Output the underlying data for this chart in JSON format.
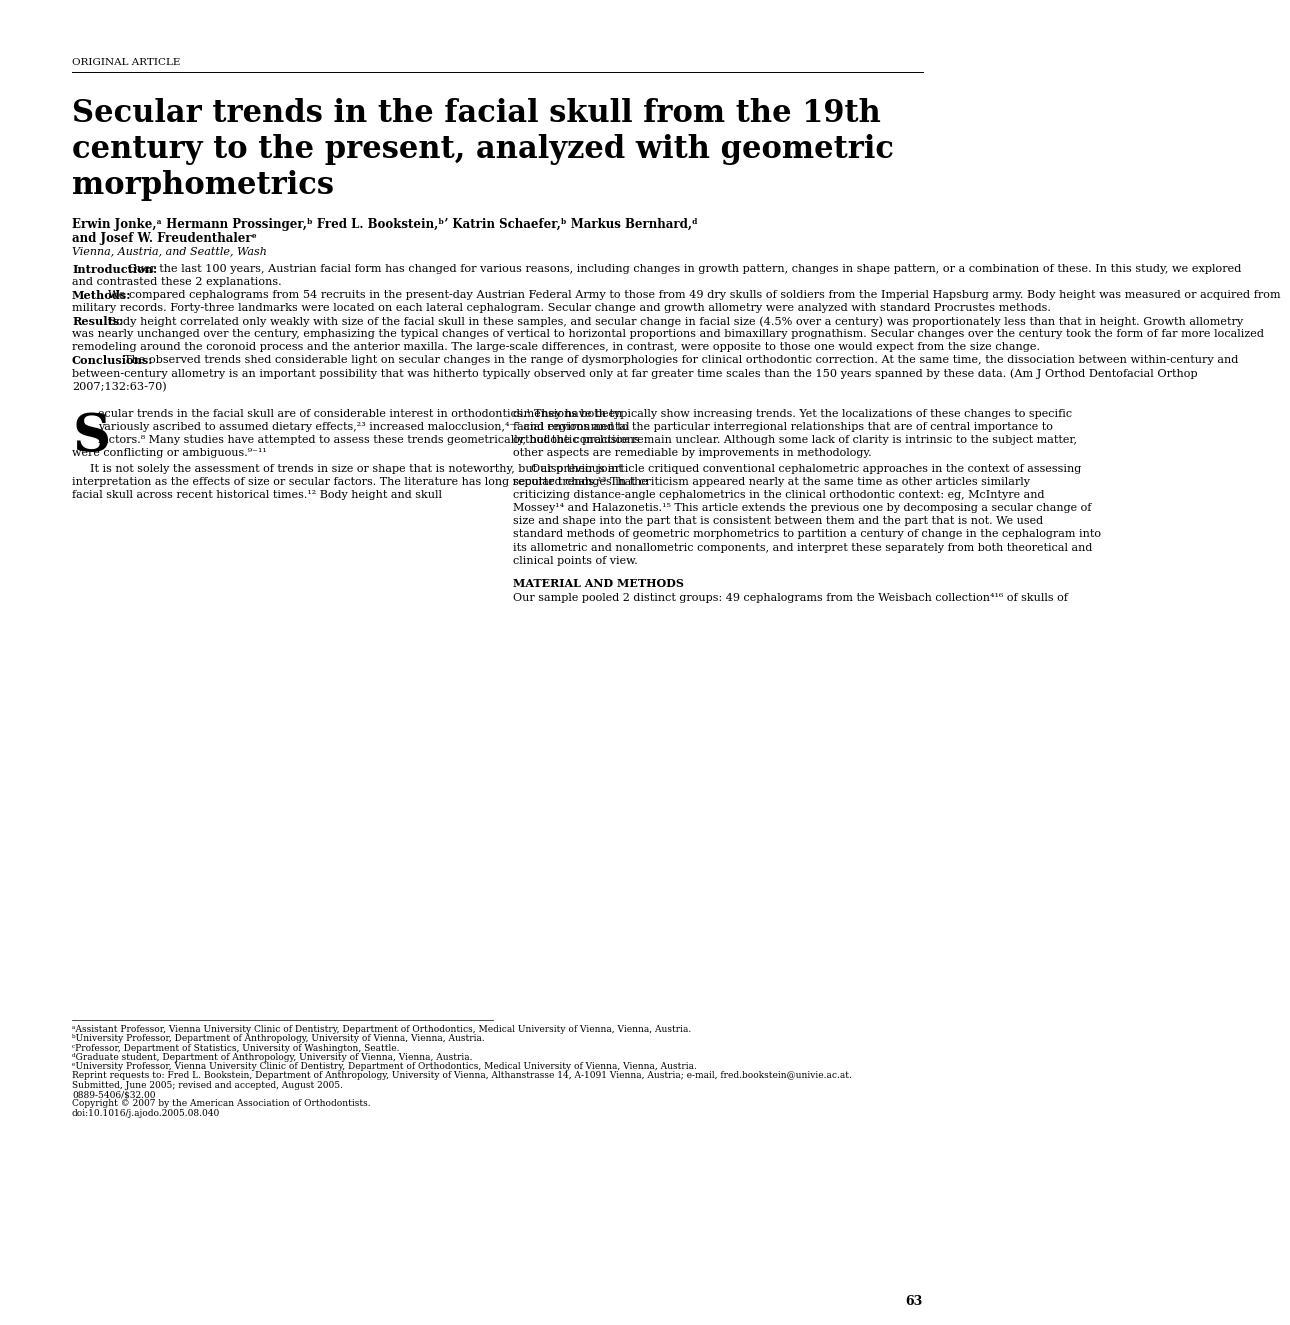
{
  "background_color": "#ffffff",
  "header_label": "ORIGINAL ARTICLE",
  "title_line1": "Secular trends in the facial skull from the 19th",
  "title_line2": "century to the present, analyzed with geometric",
  "title_line3": "morphometrics",
  "authors_line1": "Erwin Jonke,ᵃ Hermann Prossinger,ᵇ Fred L. Bookstein,ᵇʼ Katrin Schaefer,ᵇ Markus Bernhard,ᵈ",
  "authors_line2": "and Josef W. Freudenthalerᵉ",
  "affiliation": "Vienna, Austria, and Seattle, Wash",
  "abstract_intro_label": "Introduction:",
  "abstract_intro": "Over the last 100 years, Austrian facial form has changed for various reasons, including changes in growth pattern, changes in shape pattern, or a combination of these. In this study, we explored and contrasted these 2 explanations.",
  "abstract_methods_label": "Methods:",
  "abstract_methods": "We compared cephalograms from 54 recruits in the present-day Austrian Federal Army to those from 49 dry skulls of soldiers from the Imperial Hapsburg army. Body height was measured or acquired from military records. Forty-three landmarks were located on each lateral cephalogram. Secular change and growth allometry were analyzed with standard Procrustes methods.",
  "abstract_results_label": "Results:",
  "abstract_results": "Body height correlated only weakly with size of the facial skull in these samples, and secular change in facial size (4.5% over a century) was proportionately less than that in height. Growth allometry was nearly unchanged over the century, emphasizing the typical changes of vertical to horizontal proportions and bimaxillary prognathism. Secular changes over the century took the form of far more localized remodeling around the coronoid process and the anterior maxilla. The large-scale differences, in contrast, were opposite to those one would expect from the size change.",
  "abstract_conclusions_label": "Conclusions:",
  "abstract_conclusions": "The observed trends shed considerable light on secular changes in the range of dysmorphologies for clinical orthodontic correction. At the same time, the dissociation between within-century and between-century allometry is an important possibility that was hitherto typically observed only at far greater time scales than the 150 years spanned by these data. (Am J Orthod Dentofacial Orthop 2007;132:63-70)",
  "body_col1_para1": "ecular trends in the facial skull are of considerable interest in orthodontics.¹ They have been variously ascribed to assumed dietary effects,²³ increased malocclusion,⁴⁻⁷ and environmental factors.⁸ Many studies have attempted to assess these trends geometrically, but the conclusions were conflicting or ambiguous.⁹⁻¹¹",
  "body_col1_para2": "It is not solely the assessment of trends in size or shape that is noteworthy, but also their joint interpretation as the effects of size or secular factors. The literature has long reported changes in the facial skull across recent historical times.¹² Body height and skull",
  "body_col2_para1": "dimensions both typically show increasing trends. Yet the localizations of these changes to specific facial regions and to the particular interregional relationships that are of central importance to orthodontic practice remain unclear. Although some lack of clarity is intrinsic to the subject matter, other aspects are remediable by improvements in methodology.",
  "body_col2_para2": "Our previous article critiqued conventional cephalometric approaches in the context of assessing secular trends.¹³ That criticism appeared nearly at the same time as other articles similarly criticizing distance-angle cephalometrics in the clinical orthodontic context: eg, McIntyre and Mossey¹⁴ and Halazonetis.¹⁵ This article extends the previous one by decomposing a secular change of size and shape into the part that is consistent between them and the part that is not. We used standard methods of geometric morphometrics to partition a century of change in the cephalogram into its allometric and nonallometric components, and interpret these separately from both theoretical and clinical points of view.",
  "footnotes": [
    "ᵃAssistant Professor, Vienna University Clinic of Dentistry, Department of Orthodontics, Medical University of Vienna, Vienna, Austria.",
    "ᵇUniversity Professor, Department of Anthropology, University of Vienna, Vienna, Austria.",
    "ᶜProfessor, Department of Statistics, University of Washington, Seattle.",
    "ᵈGraduate student, Department of Anthropology, University of Vienna, Vienna, Austria.",
    "ᵉUniversity Professor, Vienna University Clinic of Dentistry, Department of Orthodontics, Medical University of Vienna, Vienna, Austria.",
    "Reprint requests to: Fred L. Bookstein, Department of Anthropology, University of Vienna, Althanstrasse 14, A-1091 Vienna, Austria; e-mail, fred.bookstein@univie.ac.at.",
    "Submitted, June 2005; revised and accepted, August 2005.",
    "0889-5406/$32.00",
    "Copyright © 2007 by the American Association of Orthodontists.",
    "doi:10.1016/j.ajodo.2005.08.040"
  ],
  "section_header": "MATERIAL AND METHODS",
  "section_text": "Our sample pooled 2 distinct groups: 49 cephalograms from the Weisbach collection⁴¹⁶ of skulls of",
  "page_number": "63"
}
